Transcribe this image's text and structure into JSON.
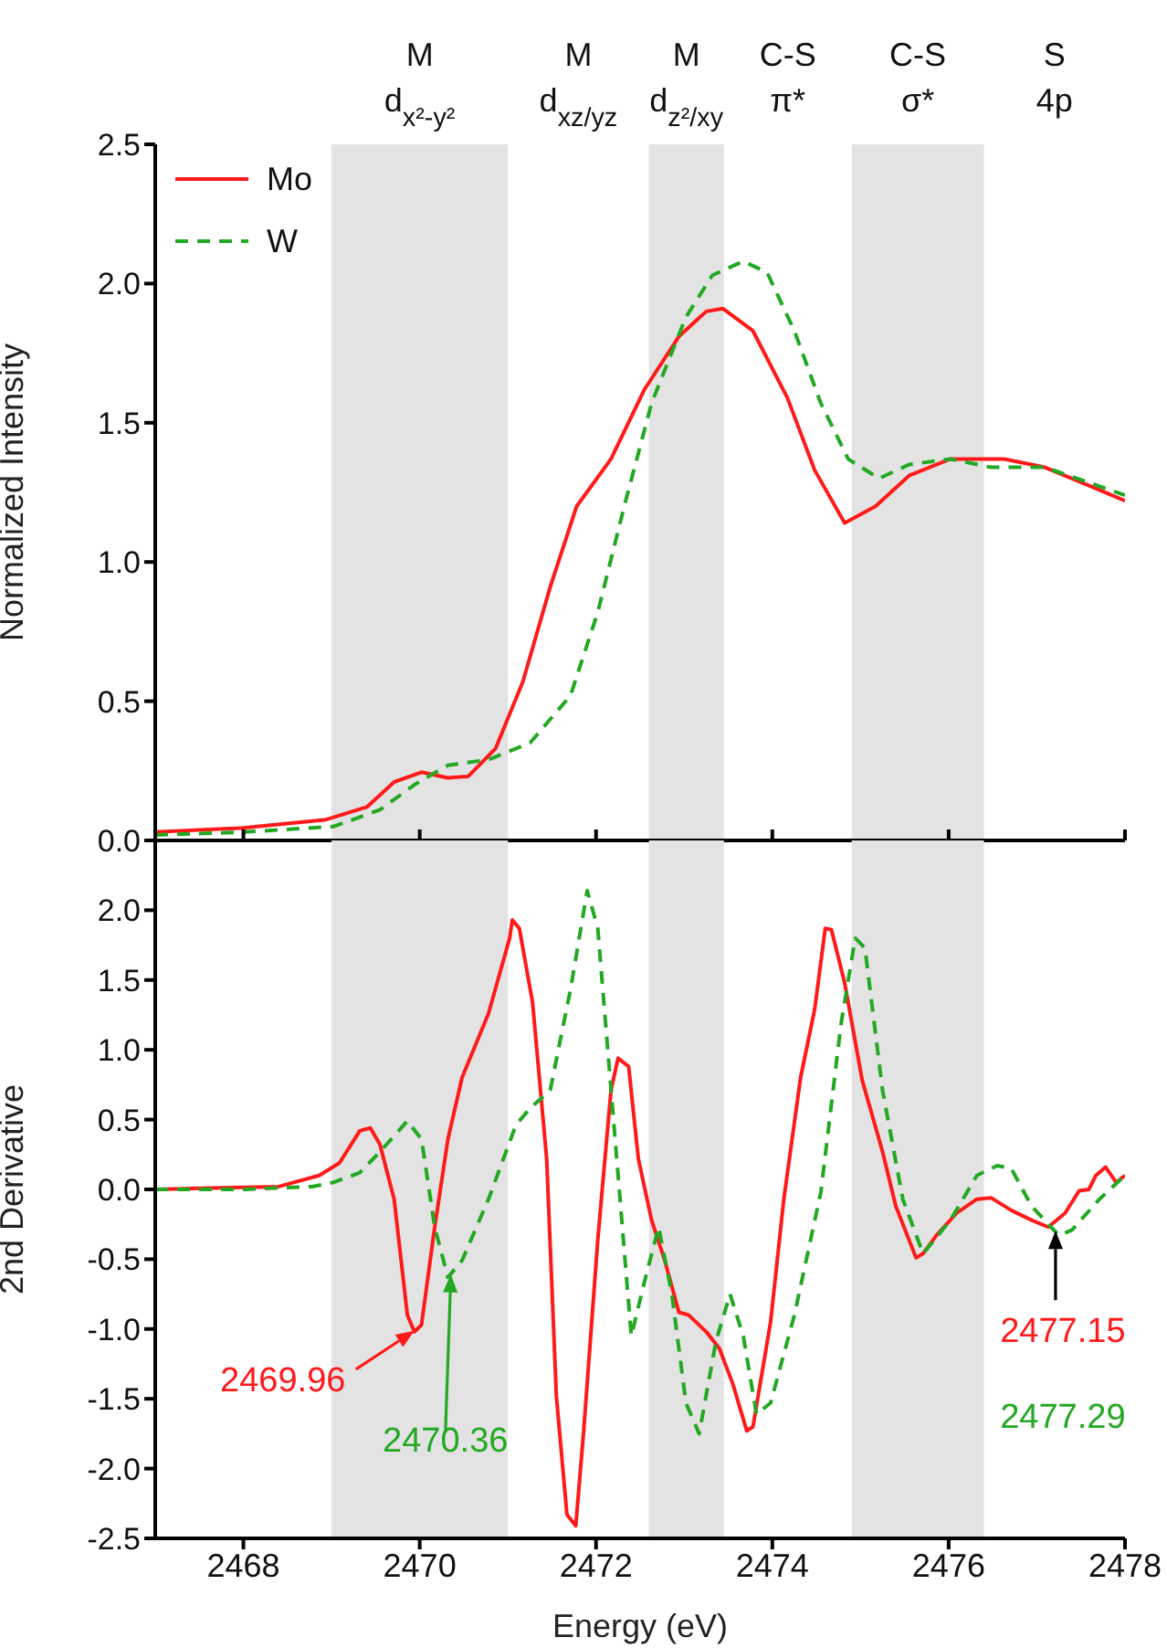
{
  "chart_data": [
    {
      "type": "line",
      "ylabel": "Normalized Intensity",
      "xlim": [
        2467,
        2478
      ],
      "xticks": [
        {
          "value": 2468,
          "label": null
        },
        {
          "value": 2470,
          "label": null
        },
        {
          "value": 2472,
          "label": null
        },
        {
          "value": 2474,
          "label": null
        },
        {
          "value": 2476,
          "label": null
        },
        {
          "value": 2478,
          "label": null
        }
      ],
      "ylim": [
        0,
        2.5
      ],
      "yticks": [
        {
          "value": 0,
          "label": "0.0"
        },
        0.5,
        {
          "value": 1,
          "label": "1.0"
        },
        1.5,
        {
          "value": 2,
          "label": "2.0"
        },
        2.5
      ],
      "tick_labels": "y",
      "legend": "top left",
      "marker": "none",
      "bands": [
        {
          "axis": "x",
          "from": 2469,
          "to": 2471,
          "label": "M d$_{x²-y²}$",
          "color": "#e3e3e3"
        },
        {
          "axis": "x",
          "from": 2472.6,
          "to": 2473.45,
          "label": "M d$_{z²/xy}$",
          "color": "#e3e3e3"
        },
        {
          "axis": "x",
          "from": 2474.9,
          "to": 2476.4,
          "label": "C-S σ*",
          "color": "#e3e3e3"
        }
      ],
      "annotations": [
        "M d$_{xz/yz}$",
        "C-S π*",
        "S 4p"
      ],
      "series": [
        {
          "name": "Mo",
          "color": "#ff1a1a",
          "line_style": "solid",
          "x": [
            2467,
            2468,
            2468.94,
            2469.4,
            2469.71,
            2470.02,
            2470.32,
            2470.55,
            2470.86,
            2471.17,
            2471.48,
            2471.78,
            2472.17,
            2472.55,
            2472.94,
            2473.25,
            2473.44,
            2473.78,
            2474.17,
            2474.48,
            2474.82,
            2475.17,
            2475.55,
            2476.02,
            2476.63,
            2477.09,
            2477.55,
            2478
          ],
          "values": [
            0.03,
            0.045,
            0.075,
            0.12,
            0.21,
            0.245,
            0.225,
            0.23,
            0.33,
            0.57,
            0.91,
            1.2,
            1.37,
            1.62,
            1.81,
            1.9,
            1.91,
            1.83,
            1.59,
            1.33,
            1.14,
            1.2,
            1.31,
            1.37,
            1.37,
            1.34,
            1.28,
            1.22
          ]
        },
        {
          "name": "W",
          "color": "#22a822",
          "line_style": "dashed",
          "x": [
            2467,
            2468,
            2469.02,
            2469.55,
            2469.94,
            2470.32,
            2470.78,
            2471.25,
            2471.71,
            2472.02,
            2472.32,
            2472.63,
            2473.02,
            2473.32,
            2473.67,
            2473.94,
            2474.25,
            2474.55,
            2474.86,
            2475.21,
            2475.55,
            2476.02,
            2476.48,
            2477.09,
            2477.55,
            2478
          ],
          "values": [
            0.02,
            0.03,
            0.05,
            0.11,
            0.2,
            0.27,
            0.29,
            0.35,
            0.52,
            0.82,
            1.2,
            1.57,
            1.88,
            2.03,
            2.08,
            2.04,
            1.83,
            1.57,
            1.37,
            1.3,
            1.35,
            1.37,
            1.34,
            1.34,
            1.29,
            1.24
          ]
        }
      ]
    },
    {
      "type": "line",
      "xlabel": "Energy (eV)",
      "ylabel": "2nd Derivative",
      "xlim": [
        2467,
        2478
      ],
      "xticks": [
        2468,
        2470,
        2472,
        2474,
        2476,
        2478
      ],
      "ylim": [
        -2.5,
        2.5
      ],
      "yticks": [
        -2.5,
        {
          "value": -2,
          "label": "-2.0"
        },
        -1.5,
        {
          "value": -1,
          "label": "-1.0"
        },
        -0.5,
        {
          "value": 0,
          "label": "0.0"
        },
        0.5,
        {
          "value": 1,
          "label": "1.0"
        },
        1.5,
        {
          "value": 2,
          "label": "2.0"
        }
      ],
      "marker": "none",
      "bands": [
        {
          "axis": "x",
          "from": 2469,
          "to": 2471,
          "color": "#e3e3e3"
        },
        {
          "axis": "x",
          "from": 2472.6,
          "to": 2473.45,
          "color": "#e3e3e3"
        },
        {
          "axis": "x",
          "from": 2474.9,
          "to": 2476.4,
          "color": "#e3e3e3"
        }
      ],
      "annotations": [
        {
          "text": "2469.96",
          "x": 2469.96,
          "y": -1.0
        },
        "2470.36",
        {
          "text": "2477.15",
          "x": 2477.15,
          "y": -0.27
        },
        "2477.29"
      ],
      "series": [
        {
          "color": "#ff1a1a",
          "line_style": "solid",
          "x": [
            2467,
            2467.63,
            2468.4,
            2468.86,
            2469.09,
            2469.32,
            2469.44,
            2469.55,
            2469.71,
            2469.86,
            2469.94,
            2470.02,
            2470.17,
            2470.32,
            2470.48,
            2470.78,
            2471.02,
            2471.05,
            2471.13,
            2471.28,
            2471.44,
            2471.55,
            2471.67,
            2471.77,
            2471.86,
            2472.02,
            2472.17,
            2472.25,
            2472.37,
            2472.48,
            2472.63,
            2472.78,
            2472.94,
            2473.05,
            2473.25,
            2473.4,
            2473.55,
            2473.71,
            2473.78,
            2473.98,
            2474.13,
            2474.32,
            2474.48,
            2474.6,
            2474.67,
            2474.82,
            2475.02,
            2475.25,
            2475.4,
            2475.63,
            2475.71,
            2475.86,
            2476.09,
            2476.32,
            2476.48,
            2476.71,
            2476.94,
            2477.13,
            2477.32,
            2477.48,
            2477.59,
            2477.67,
            2477.78,
            2477.9,
            2478
          ],
          "values": [
            0,
            0.01,
            0.02,
            0.1,
            0.19,
            0.42,
            0.44,
            0.32,
            -0.07,
            -0.9,
            -1.02,
            -0.97,
            -0.27,
            0.36,
            0.8,
            1.26,
            1.8,
            1.93,
            1.87,
            1.34,
            0.22,
            -1.48,
            -2.33,
            -2.41,
            -1.73,
            -0.36,
            0.71,
            0.94,
            0.88,
            0.22,
            -0.22,
            -0.51,
            -0.88,
            -0.9,
            -1.02,
            -1.14,
            -1.39,
            -1.73,
            -1.7,
            -0.95,
            -0.07,
            0.8,
            1.29,
            1.87,
            1.86,
            1.48,
            0.78,
            0.27,
            -0.12,
            -0.49,
            -0.46,
            -0.33,
            -0.17,
            -0.07,
            -0.06,
            -0.15,
            -0.22,
            -0.27,
            -0.17,
            -0.01,
            0,
            0.1,
            0.16,
            0.05,
            0.1
          ]
        },
        {
          "color": "#22a822",
          "line_style": "dashed",
          "x": [
            2467,
            2468.02,
            2468.78,
            2469.02,
            2469.32,
            2469.55,
            2469.86,
            2470.02,
            2470.17,
            2470.32,
            2470.48,
            2470.78,
            2471.09,
            2471.25,
            2471.48,
            2471.71,
            2471.9,
            2472.02,
            2472.21,
            2472.4,
            2472.55,
            2472.71,
            2472.86,
            2473.02,
            2473.17,
            2473.36,
            2473.52,
            2473.67,
            2473.82,
            2473.98,
            2474.25,
            2474.55,
            2474.78,
            2474.94,
            2475.05,
            2475.25,
            2475.48,
            2475.71,
            2476.02,
            2476.32,
            2476.55,
            2476.71,
            2476.94,
            2477.25,
            2477.4,
            2477.71,
            2478
          ],
          "values": [
            0,
            0,
            0.02,
            0.05,
            0.12,
            0.27,
            0.49,
            0.36,
            -0.27,
            -0.63,
            -0.51,
            -0.07,
            0.46,
            0.58,
            0.71,
            1.43,
            2.14,
            1.87,
            0.41,
            -1.05,
            -0.66,
            -0.27,
            -0.75,
            -1.53,
            -1.75,
            -1.09,
            -0.75,
            -1.05,
            -1.61,
            -1.53,
            -0.9,
            -0.02,
            1.19,
            1.8,
            1.73,
            0.71,
            -0.07,
            -0.46,
            -0.22,
            0.1,
            0.17,
            0.15,
            -0.12,
            -0.33,
            -0.29,
            -0.07,
            0.1
          ]
        }
      ]
    }
  ]
}
